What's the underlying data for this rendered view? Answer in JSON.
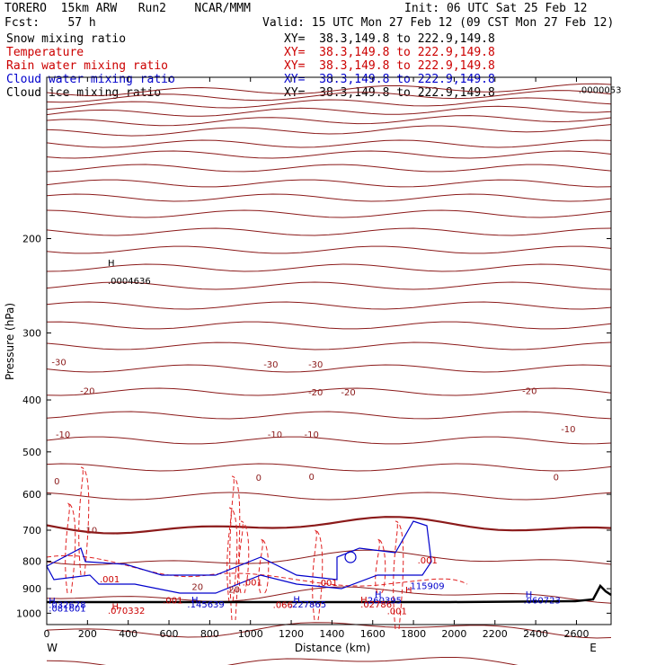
{
  "header": {
    "model": "TORERO  15km ARW   Run2    NCAR/MMM",
    "init": "Init: 06 UTC Sat 25 Feb 12",
    "fcst": "Fcst:    57 h",
    "valid": "Valid: 15 UTC Mon 27 Feb 12 (09 CST Mon 27 Feb 12)"
  },
  "legend": [
    {
      "name": "Snow mixing ratio",
      "xy": "XY=  38.3,149.8 to 222.9,149.8",
      "color": "#000000"
    },
    {
      "name": "Temperature",
      "xy": "XY=  38.3,149.8 to 222.9,149.8",
      "color": "#cc0000"
    },
    {
      "name": "Rain water mixing ratio",
      "xy": "XY=  38.3,149.8 to 222.9,149.8",
      "color": "#cc0000"
    },
    {
      "name": "Cloud water mixing ratio",
      "xy": "XY=  38.3,149.8 to 222.9,149.8",
      "color": "#0000cc"
    },
    {
      "name": "Cloud ice mixing ratio",
      "xy": "XY=  38.3,149.8 to 222.9,149.8",
      "color": "#000000"
    }
  ],
  "colors": {
    "temperature": "#8b1a1a",
    "rain": "#e02020",
    "cloud_water": "#0000cc",
    "terrain": "#000000"
  },
  "chart_data": {
    "type": "line",
    "xlabel": "Distance (km)",
    "ylabel": "Pressure (hPa)",
    "xlim": [
      0,
      2770
    ],
    "ylim": [
      1050,
      100
    ],
    "y_scale": "log-pressure",
    "x_ticks": [
      0,
      200,
      400,
      600,
      800,
      1000,
      1200,
      1400,
      1600,
      1800,
      2000,
      2200,
      2400,
      2600
    ],
    "y_ticks": [
      200,
      300,
      400,
      500,
      600,
      700,
      800,
      900,
      1000
    ],
    "x_end_labels": {
      "left": "W",
      "right": "E"
    },
    "isotherm_labels": [
      {
        "label": "-30",
        "x": 60,
        "y": 345
      },
      {
        "label": "-30",
        "x": 1100,
        "y": 348
      },
      {
        "label": "-30",
        "x": 1320,
        "y": 348
      },
      {
        "label": "-20",
        "x": 200,
        "y": 390
      },
      {
        "label": "-20",
        "x": 1320,
        "y": 392
      },
      {
        "label": "-20",
        "x": 1480,
        "y": 392
      },
      {
        "label": "-20",
        "x": 2370,
        "y": 390
      },
      {
        "label": "-10",
        "x": 80,
        "y": 470
      },
      {
        "label": "-10",
        "x": 1120,
        "y": 470
      },
      {
        "label": "-10",
        "x": 1300,
        "y": 470
      },
      {
        "label": "-10",
        "x": 2560,
        "y": 460
      },
      {
        "label": "0",
        "x": 50,
        "y": 575
      },
      {
        "label": "0",
        "x": 1040,
        "y": 566
      },
      {
        "label": "0",
        "x": 1300,
        "y": 564
      },
      {
        "label": "0",
        "x": 2500,
        "y": 565
      },
      {
        "label": "10",
        "x": 220,
        "y": 710
      },
      {
        "label": "20",
        "x": 740,
        "y": 905
      },
      {
        "label": "20",
        "x": 920,
        "y": 915
      }
    ],
    "extrema_labels": [
      {
        "label": "H",
        "x": 300,
        "y": 225,
        "color": "#000000"
      },
      {
        "label": ".0004636",
        "x": 300,
        "y": 243,
        "color": "#000000"
      },
      {
        "label": ".0000053",
        "x": 2610,
        "y": 107,
        "color": "#000000"
      },
      {
        "label": ".001",
        "x": 260,
        "y": 875,
        "color": "#cc0000"
      },
      {
        "label": ".001",
        "x": 960,
        "y": 888,
        "color": "#cc0000"
      },
      {
        "label": ".001",
        "x": 1330,
        "y": 890,
        "color": "#cc0000"
      },
      {
        "label": ".001",
        "x": 1820,
        "y": 808,
        "color": "#cc0000"
      },
      {
        "label": ".001",
        "x": 570,
        "y": 958,
        "color": "#cc0000"
      },
      {
        "label": ".001",
        "x": 1670,
        "y": 1005,
        "color": "#cc0000"
      },
      {
        "label": "H",
        "x": 10,
        "y": 960,
        "color": "#0000cc"
      },
      {
        "label": ".032678",
        "x": 10,
        "y": 978,
        "color": "#0000cc"
      },
      {
        "label": ".081601",
        "x": 10,
        "y": 993,
        "color": "#0000cc"
      },
      {
        "label": "H",
        "x": 320,
        "y": 985,
        "color": "#cc0000"
      },
      {
        "label": ".070332",
        "x": 300,
        "y": 1002,
        "color": "#cc0000"
      },
      {
        "label": "H",
        "x": 710,
        "y": 957,
        "color": "#0000cc"
      },
      {
        "label": ".145639",
        "x": 690,
        "y": 975,
        "color": "#0000cc"
      },
      {
        "label": ".066",
        "x": 1110,
        "y": 978,
        "color": "#cc0000"
      },
      {
        "label": "H",
        "x": 1210,
        "y": 955,
        "color": "#0000cc"
      },
      {
        "label": ".227865",
        "x": 1190,
        "y": 975,
        "color": "#0000cc"
      },
      {
        "label": "H",
        "x": 1610,
        "y": 935,
        "color": "#0000cc"
      },
      {
        "label": "H",
        "x": 1540,
        "y": 957,
        "color": "#cc0000"
      },
      {
        "label": ".260395",
        "x": 1560,
        "y": 958,
        "color": "#0000cc"
      },
      {
        "label": ".02786",
        "x": 1540,
        "y": 975,
        "color": "#cc0000"
      },
      {
        "label": "H",
        "x": 1760,
        "y": 918,
        "color": "#cc0000"
      },
      {
        "label": ".115909",
        "x": 1770,
        "y": 902,
        "color": "#0000cc"
      },
      {
        "label": "H",
        "x": 2350,
        "y": 935,
        "color": "#0000cc"
      },
      {
        "label": ".060723",
        "x": 2340,
        "y": 958,
        "color": "#0000cc"
      }
    ]
  }
}
